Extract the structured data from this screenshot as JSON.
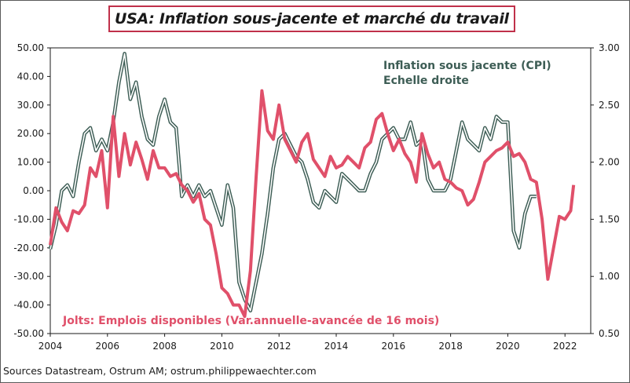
{
  "title": "USA: Inflation sous-jacente et marché du travail",
  "source": "Sources Datastream,  Ostrum AM; ostrum.philippewaechter.com",
  "colors": {
    "jolts": "#e0506a",
    "cpi_outline": "#3d5d55",
    "cpi_fill": "#ffffff",
    "title_border": "#c0304a"
  },
  "chart_data": {
    "type": "line",
    "x_ticks": [
      "2004",
      "2006",
      "2008",
      "2010",
      "2012",
      "2014",
      "2016",
      "2018",
      "2020",
      "2022"
    ],
    "y_left_ticks": [
      "50.00",
      "40.00",
      "30.00",
      "20.00",
      "10.00",
      "0.00",
      "-10.00",
      "-20.00",
      "-30.00",
      "-40.00",
      "-50.00"
    ],
    "y_right_ticks": [
      "3.00",
      "2.50",
      "2.00",
      "1.50",
      "1.00",
      "0.50"
    ],
    "ylim_left": [
      -50,
      50
    ],
    "ylim_right": [
      0.5,
      3.0
    ],
    "xlim": [
      2004,
      2022.9
    ],
    "grid": false,
    "series": [
      {
        "name": "Inflation  sous jacente (CPI)",
        "axis": "right",
        "note": "Echelle droite",
        "x": [
          2004.0,
          2004.2,
          2004.4,
          2004.6,
          2004.8,
          2005.0,
          2005.2,
          2005.4,
          2005.6,
          2005.8,
          2006.0,
          2006.2,
          2006.4,
          2006.6,
          2006.8,
          2007.0,
          2007.2,
          2007.4,
          2007.6,
          2007.8,
          2008.0,
          2008.2,
          2008.4,
          2008.6,
          2008.8,
          2009.0,
          2009.2,
          2009.4,
          2009.6,
          2009.8,
          2010.0,
          2010.2,
          2010.4,
          2010.6,
          2010.8,
          2011.0,
          2011.2,
          2011.4,
          2011.6,
          2011.8,
          2012.0,
          2012.2,
          2012.4,
          2012.6,
          2012.8,
          2013.0,
          2013.2,
          2013.4,
          2013.6,
          2013.8,
          2014.0,
          2014.2,
          2014.4,
          2014.6,
          2014.8,
          2015.0,
          2015.2,
          2015.4,
          2015.6,
          2015.8,
          2016.0,
          2016.2,
          2016.4,
          2016.6,
          2016.8,
          2017.0,
          2017.2,
          2017.4,
          2017.6,
          2017.8,
          2018.0,
          2018.2,
          2018.4,
          2018.6,
          2018.8,
          2019.0,
          2019.2,
          2019.4,
          2019.6,
          2019.8,
          2020.0,
          2020.2,
          2020.4,
          2020.6,
          2020.8,
          2021.0
        ],
        "y": [
          1.24,
          1.45,
          1.75,
          1.8,
          1.7,
          2.0,
          2.25,
          2.3,
          2.1,
          2.2,
          2.1,
          2.35,
          2.7,
          2.95,
          2.55,
          2.7,
          2.4,
          2.2,
          2.15,
          2.4,
          2.55,
          2.35,
          2.3,
          1.7,
          1.8,
          1.7,
          1.8,
          1.7,
          1.75,
          1.6,
          1.45,
          1.8,
          1.6,
          0.95,
          0.8,
          0.7,
          0.95,
          1.2,
          1.55,
          1.95,
          2.2,
          2.25,
          2.15,
          2.05,
          2.0,
          1.85,
          1.65,
          1.6,
          1.75,
          1.7,
          1.65,
          1.9,
          1.85,
          1.8,
          1.75,
          1.75,
          1.9,
          2.0,
          2.2,
          2.25,
          2.3,
          2.2,
          2.2,
          2.35,
          2.15,
          2.2,
          1.85,
          1.75,
          1.75,
          1.75,
          1.85,
          2.1,
          2.35,
          2.2,
          2.15,
          2.1,
          2.3,
          2.2,
          2.4,
          2.35,
          2.35,
          1.4,
          1.25,
          1.55,
          1.7,
          1.7
        ]
      },
      {
        "name": "Jolts: Emplois disponibles  (Var.annuelle-avancée  de 16 mois)",
        "axis": "left",
        "x": [
          2004.0,
          2004.2,
          2004.4,
          2004.6,
          2004.8,
          2005.0,
          2005.2,
          2005.4,
          2005.6,
          2005.8,
          2006.0,
          2006.2,
          2006.4,
          2006.6,
          2006.8,
          2007.0,
          2007.2,
          2007.4,
          2007.6,
          2007.8,
          2008.0,
          2008.2,
          2008.4,
          2008.6,
          2008.8,
          2009.0,
          2009.2,
          2009.4,
          2009.6,
          2009.8,
          2010.0,
          2010.2,
          2010.4,
          2010.6,
          2010.8,
          2011.0,
          2011.2,
          2011.4,
          2011.6,
          2011.8,
          2012.0,
          2012.2,
          2012.4,
          2012.6,
          2012.8,
          2013.0,
          2013.2,
          2013.4,
          2013.6,
          2013.8,
          2014.0,
          2014.2,
          2014.4,
          2014.6,
          2014.8,
          2015.0,
          2015.2,
          2015.4,
          2015.6,
          2015.8,
          2016.0,
          2016.2,
          2016.4,
          2016.6,
          2016.8,
          2017.0,
          2017.2,
          2017.4,
          2017.6,
          2017.8,
          2018.0,
          2018.2,
          2018.4,
          2018.6,
          2018.8,
          2019.0,
          2019.2,
          2019.4,
          2019.6,
          2019.8,
          2020.0,
          2020.2,
          2020.4,
          2020.6,
          2020.8,
          2021.0,
          2021.2,
          2021.4,
          2021.6,
          2021.8,
          2022.0,
          2022.2,
          2022.3
        ],
        "y": [
          -19,
          -6,
          -11,
          -14,
          -7,
          -8,
          -5,
          8,
          5,
          14,
          -6,
          26,
          5,
          20,
          9,
          17,
          11,
          4,
          14,
          8,
          8,
          5,
          6,
          2,
          0,
          -4,
          -1,
          -10,
          -12,
          -22,
          -34,
          -36,
          -40,
          -40,
          -44,
          -28,
          5,
          35,
          21,
          18,
          30,
          18,
          14,
          10,
          17,
          20,
          11,
          8,
          5,
          12,
          8,
          9,
          12,
          10,
          8,
          15,
          17,
          25,
          27,
          20,
          14,
          18,
          13,
          10,
          3,
          20,
          13,
          8,
          10,
          4,
          3,
          1,
          0,
          -5,
          -3,
          3,
          10,
          12,
          14,
          15,
          17,
          12,
          13,
          10,
          4,
          3,
          -10,
          -31,
          -20,
          -9,
          -10,
          -7,
          2
        ]
      }
    ]
  }
}
